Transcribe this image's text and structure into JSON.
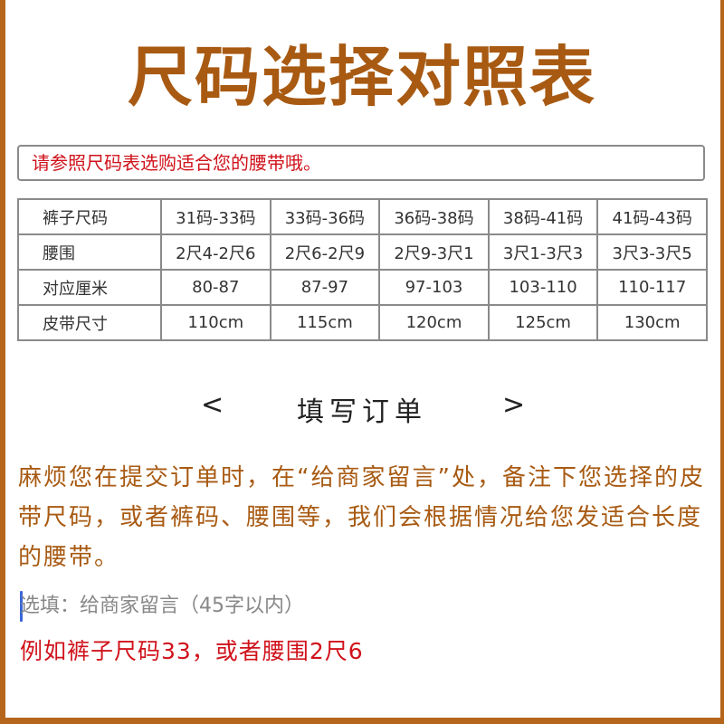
{
  "title": "尺码选择对照表",
  "notice": "请参照尺码表选购适合您的腰带哦。",
  "table": {
    "rows": [
      {
        "label": "裤子尺码",
        "cells": [
          "31码-33码",
          "33码-36码",
          "36码-38码",
          "38码-41码",
          "41码-43码"
        ]
      },
      {
        "label": "腰围",
        "cells": [
          "2尺4-2尺6",
          "2尺6-2尺9",
          "2尺9-3尺1",
          "3尺1-3尺3",
          "3尺3-3尺5"
        ]
      },
      {
        "label": "对应厘米",
        "cells": [
          "80-87",
          "87-97",
          "97-103",
          "103-110",
          "110-117"
        ]
      },
      {
        "label": "皮带尺寸",
        "cells": [
          "110cm",
          "115cm",
          "120cm",
          "125cm",
          "130cm"
        ]
      }
    ]
  },
  "nav": {
    "prev": "<",
    "title": "填写订单",
    "next": ">"
  },
  "instruction": "麻烦您在提交订单时，在“给商家留言”处，备注下您选择的皮带尺码，或者裤码、腰围等，我们会根据情况给您发适合长度的腰带。",
  "message_input": {
    "placeholder": "选填：给商家留言（45字以内）"
  },
  "example": "例如裤子尺码33，或者腰围2尺6",
  "colors": {
    "border": "#b5661a",
    "title": "#a85a12",
    "red": "#d0121b",
    "caret": "#3a66d8"
  }
}
